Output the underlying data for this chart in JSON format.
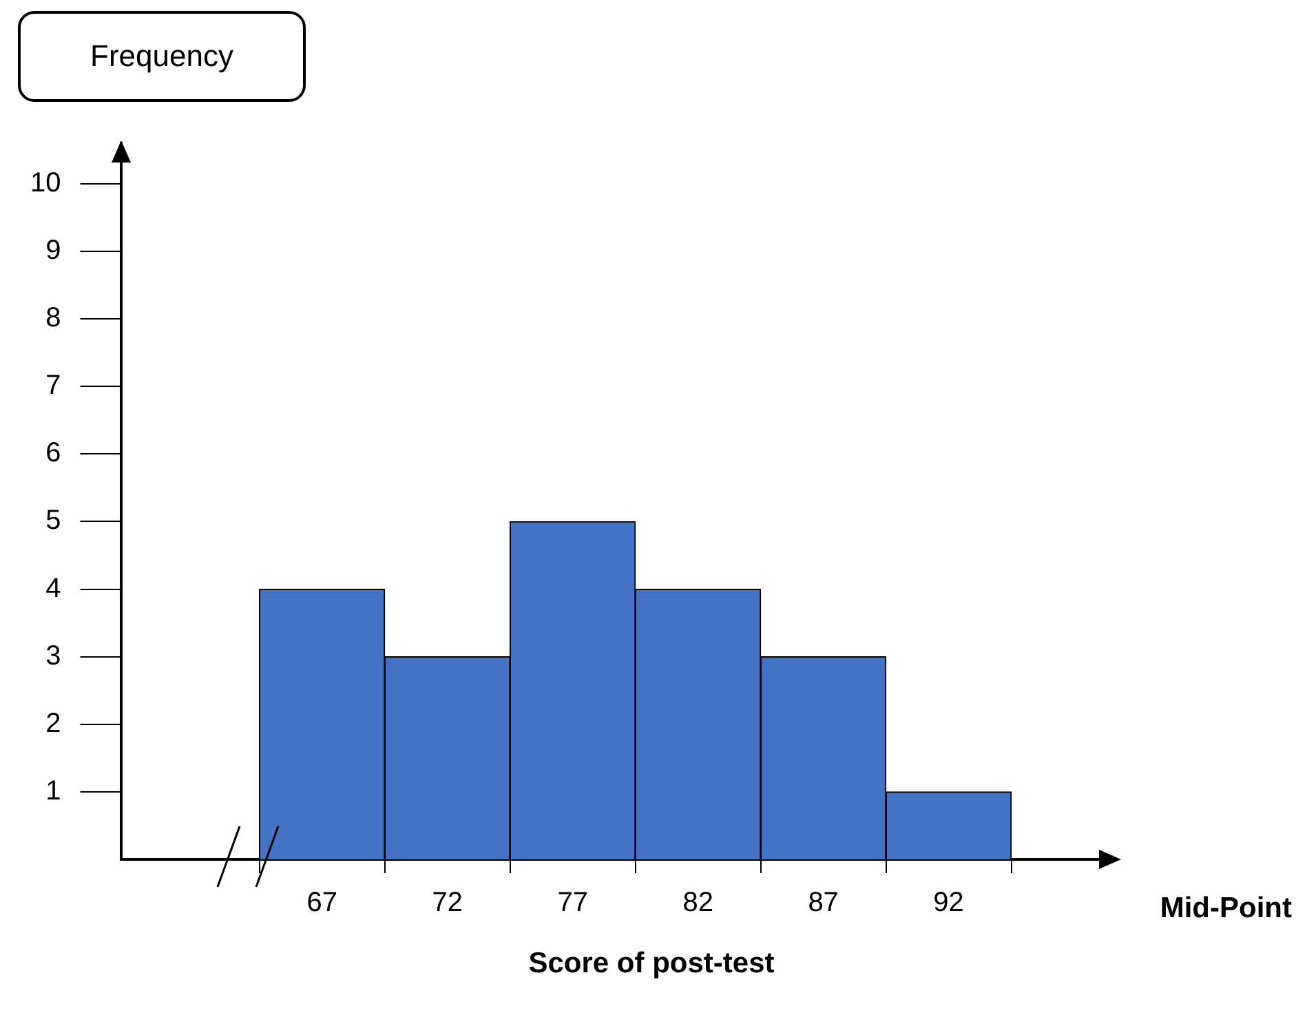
{
  "chart_data": {
    "type": "histogram",
    "ylabel": "Frequency",
    "xlabel": "Score of post-test",
    "annotations": [
      "Mid-Point"
    ],
    "bins": [
      64.5,
      69.5,
      74.5,
      79.5,
      84.5,
      89.5,
      94.5
    ],
    "values": [
      4,
      3,
      5,
      4,
      3,
      1
    ],
    "color": "#4472c4",
    "xlim": [
      59,
      98
    ],
    "xticks": [
      67,
      72,
      77,
      82,
      87,
      92
    ],
    "ylim": [
      0,
      10.6
    ],
    "yticks": [
      1,
      2,
      3,
      4,
      5,
      6,
      7,
      8,
      9,
      10
    ],
    "grid": false,
    "legend": false
  }
}
